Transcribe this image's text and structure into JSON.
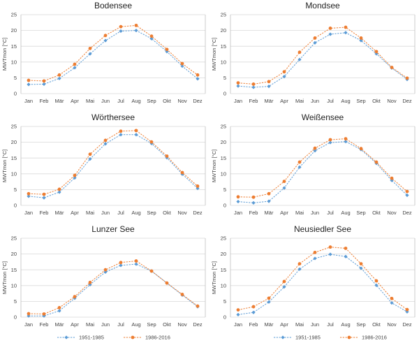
{
  "colors": {
    "s1": "#5b9bd5",
    "s2": "#ed7d31"
  },
  "legend": [
    "1951-1985",
    "1986-2016"
  ],
  "chart_data": [
    {
      "type": "line",
      "title": "Bodensee",
      "ylabel": "MWTmon [°C]",
      "ylim": [
        0,
        25
      ],
      "yticks": [
        0,
        5,
        10,
        15,
        20,
        25
      ],
      "categories": [
        "Jan",
        "Feb",
        "Mär",
        "Apr",
        "Mai",
        "Jun",
        "Jul",
        "Aug",
        "Sep",
        "Okt",
        "Nov",
        "Dez"
      ],
      "series": [
        {
          "name": "1951-1985",
          "values": [
            2.9,
            3.0,
            4.8,
            8.2,
            12.6,
            16.8,
            19.8,
            20.0,
            17.4,
            13.3,
            8.7,
            4.7
          ]
        },
        {
          "name": "1986-2016",
          "values": [
            4.2,
            4.0,
            5.9,
            9.3,
            14.3,
            18.4,
            21.2,
            21.6,
            18.2,
            14.0,
            9.5,
            5.9
          ]
        }
      ]
    },
    {
      "type": "line",
      "title": "Mondsee",
      "ylabel": "MWTmon [°C]",
      "ylim": [
        0,
        25
      ],
      "yticks": [
        0,
        5,
        10,
        15,
        20,
        25
      ],
      "categories": [
        "Jan",
        "Feb",
        "Mär",
        "Apr",
        "Mai",
        "Jun",
        "Jul",
        "Aug",
        "Sep",
        "Okt",
        "Nov",
        "Dez"
      ],
      "series": [
        {
          "name": "1951-1985",
          "values": [
            2.4,
            2.0,
            2.3,
            5.4,
            10.8,
            16.1,
            18.8,
            19.3,
            16.8,
            12.6,
            8.1,
            4.5
          ]
        },
        {
          "name": "1986-2016",
          "values": [
            3.4,
            3.0,
            3.8,
            6.9,
            13.1,
            17.6,
            20.7,
            21.0,
            17.6,
            13.3,
            8.3,
            4.9
          ]
        }
      ]
    },
    {
      "type": "line",
      "title": "Wörthersee",
      "ylabel": "MWTmon [°C]",
      "ylim": [
        0,
        25
      ],
      "yticks": [
        0,
        5,
        10,
        15,
        20,
        25
      ],
      "categories": [
        "Jan",
        "Feb",
        "Mär",
        "Apr",
        "Mai",
        "Jun",
        "Jul",
        "Aug",
        "Sep",
        "Okt",
        "Nov",
        "Dez"
      ],
      "series": [
        {
          "name": "1951-1985",
          "values": [
            2.9,
            2.4,
            4.2,
            8.7,
            14.7,
            19.5,
            22.4,
            22.4,
            19.6,
            15.1,
            9.9,
            5.4
          ]
        },
        {
          "name": "1986-2016",
          "values": [
            3.7,
            3.5,
            5.1,
            9.5,
            16.2,
            20.6,
            23.5,
            23.7,
            20.1,
            15.6,
            10.4,
            6.1
          ]
        }
      ]
    },
    {
      "type": "line",
      "title": "Weißensee",
      "ylabel": "MWTmon [°C]",
      "ylim": [
        0,
        25
      ],
      "yticks": [
        0,
        5,
        10,
        15,
        20,
        25
      ],
      "categories": [
        "Jan",
        "Feb",
        "Mär",
        "Apr",
        "Mai",
        "Jun",
        "Jul",
        "Aug",
        "Sep",
        "Okt",
        "Nov",
        "Dez"
      ],
      "series": [
        {
          "name": "1951-1985",
          "values": [
            1.2,
            0.8,
            1.3,
            5.5,
            12.1,
            17.3,
            19.9,
            20.2,
            17.7,
            13.3,
            7.9,
            3.2
          ]
        },
        {
          "name": "1986-2016",
          "values": [
            2.7,
            2.6,
            3.7,
            7.6,
            13.7,
            18.1,
            20.8,
            21.1,
            18.0,
            13.7,
            8.6,
            4.4
          ]
        }
      ]
    },
    {
      "type": "line",
      "title": "Lunzer See",
      "ylabel": "MWTmon [°C]",
      "ylim": [
        0,
        25
      ],
      "yticks": [
        0,
        5,
        10,
        15,
        20,
        25
      ],
      "categories": [
        "Jan",
        "Feb",
        "Mär",
        "Apr",
        "Mai",
        "Jun",
        "Jul",
        "Aug",
        "Sep",
        "Okt",
        "Nov",
        "Dez"
      ],
      "series": [
        {
          "name": "1951-1985",
          "values": [
            0.4,
            0.4,
            2.0,
            6.0,
            10.3,
            14.3,
            16.4,
            16.8,
            14.6,
            10.8,
            7.0,
            3.3
          ]
        },
        {
          "name": "1986-2016",
          "values": [
            1.1,
            1.0,
            3.0,
            6.5,
            11.0,
            15.0,
            17.3,
            17.8,
            14.6,
            10.8,
            7.2,
            3.5
          ]
        }
      ]
    },
    {
      "type": "line",
      "title": "Neusiedler See",
      "ylabel": "MWTmon [°C]",
      "ylim": [
        0,
        25
      ],
      "yticks": [
        0,
        5,
        10,
        15,
        20,
        25
      ],
      "categories": [
        "Jan",
        "Feb",
        "Mär",
        "Apr",
        "Mai",
        "Jun",
        "Jul",
        "Aug",
        "Sep",
        "Okt",
        "Nov",
        "Dez"
      ],
      "series": [
        {
          "name": "1951-1985",
          "values": [
            0.8,
            1.5,
            4.8,
            9.6,
            15.2,
            18.6,
            19.9,
            19.2,
            15.5,
            10.1,
            4.5,
            1.7
          ]
        },
        {
          "name": "1986-2016",
          "values": [
            2.3,
            3.3,
            6.0,
            11.3,
            16.9,
            20.5,
            22.2,
            21.8,
            16.9,
            11.5,
            5.9,
            2.4
          ]
        }
      ]
    }
  ]
}
